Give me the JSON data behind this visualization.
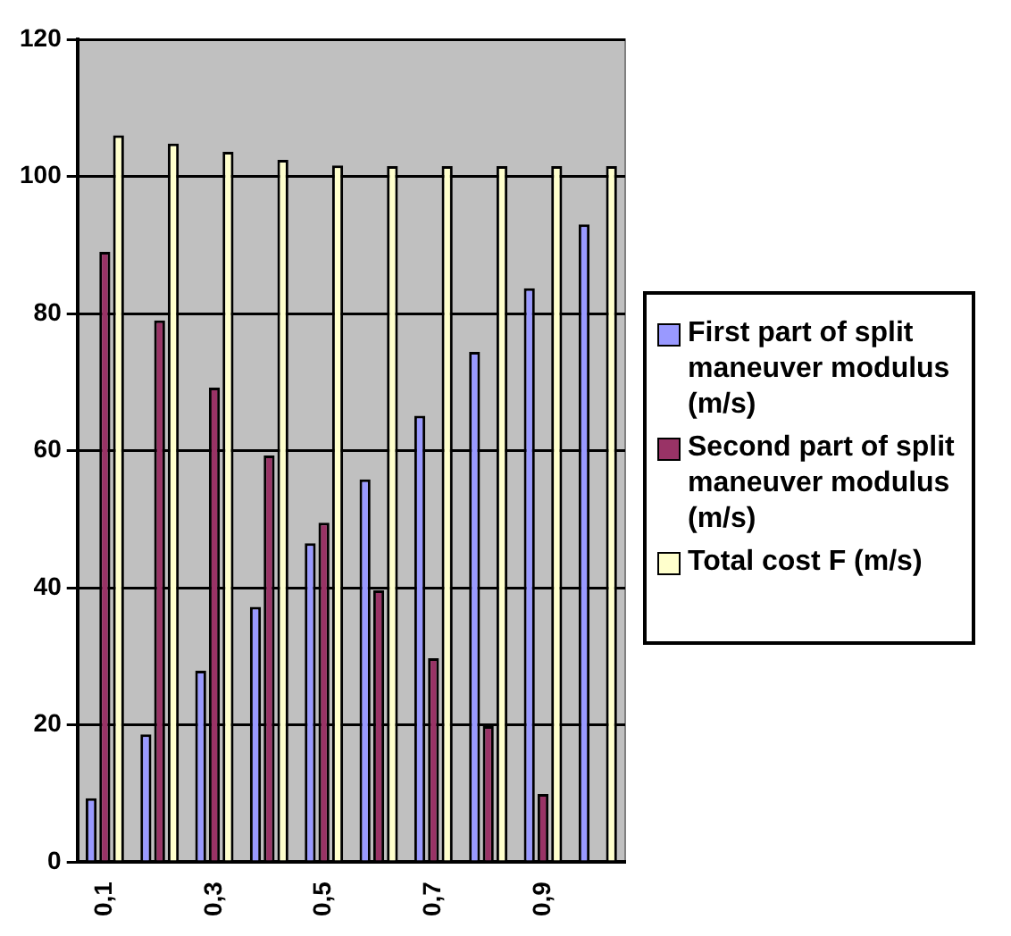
{
  "chart_data": {
    "type": "bar",
    "categories": [
      "0,1",
      null,
      "0,3",
      null,
      "0,5",
      null,
      "0,7",
      null,
      "0,9",
      null
    ],
    "series": [
      {
        "name": "First part of split maneuver modulus (m/s)",
        "color": "#9999ff",
        "values": [
          9.3,
          18.6,
          27.9,
          37.2,
          46.5,
          55.8,
          65.1,
          74.4,
          83.7,
          93
        ]
      },
      {
        "name": "Second part of split maneuver modulus (m/s)",
        "color": "#993366",
        "values": [
          89,
          79,
          69.2,
          59.3,
          49.5,
          39.6,
          29.7,
          19.8,
          9.9,
          0
        ]
      },
      {
        "name": "Total cost F (m/s)",
        "color": "#ffffcc",
        "values": [
          106,
          104.8,
          103.6,
          102.4,
          101.6,
          101.5,
          101.5,
          101.5,
          101.5,
          101.5
        ]
      }
    ],
    "ylim": [
      0,
      120
    ],
    "yticks": [
      0,
      20,
      40,
      60,
      80,
      100,
      120
    ],
    "grid": "y",
    "legend": "right"
  }
}
